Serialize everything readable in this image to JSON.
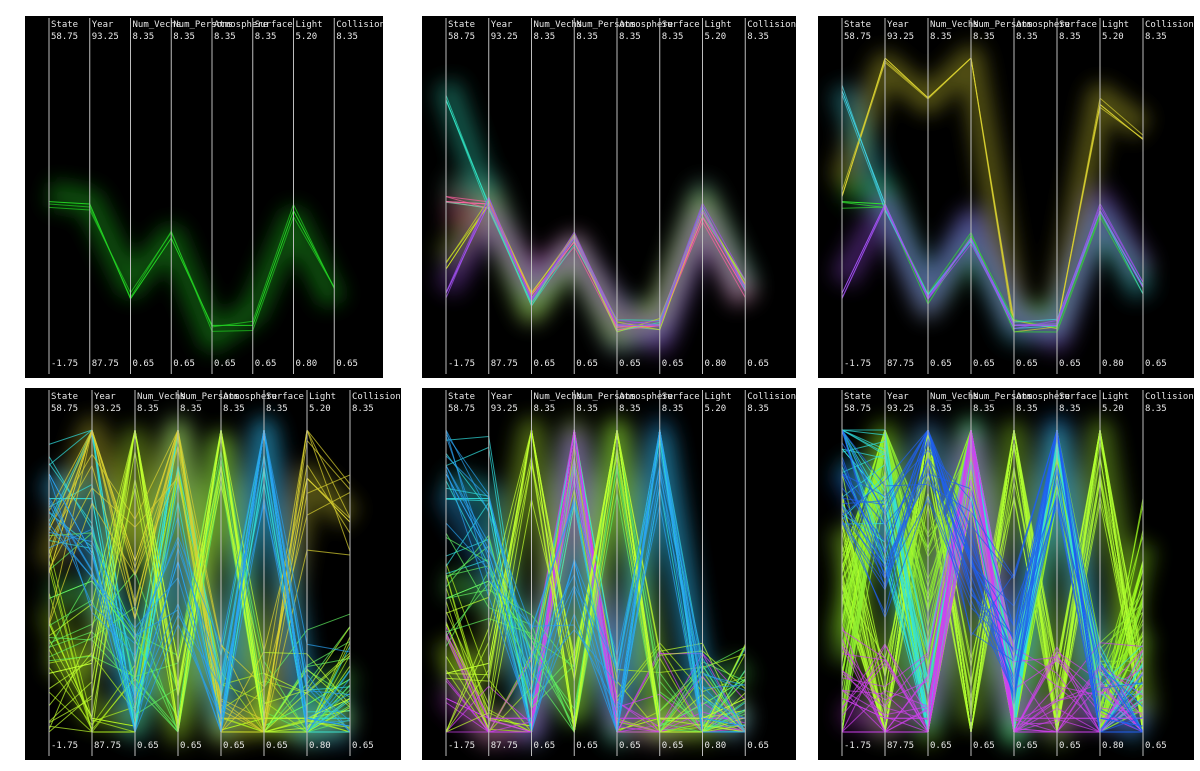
{
  "chart_data": [
    {
      "type": "parallel-coordinates",
      "panel": "top-left",
      "axes": [
        {
          "label": "State",
          "max": "58.75",
          "min": "-1.75"
        },
        {
          "label": "Year",
          "max": "93.25",
          "min": "87.75"
        },
        {
          "label": "Num_Vechs",
          "max": "8.35",
          "min": "0.65"
        },
        {
          "label": "Num_Persons",
          "max": "8.35",
          "min": "0.65"
        },
        {
          "label": "Atmosphere",
          "max": "8.35",
          "min": "0.65"
        },
        {
          "label": "Surface",
          "max": "8.35",
          "min": "0.65"
        },
        {
          "label": "Light",
          "max": "5.20",
          "min": "0.80"
        },
        {
          "label": "Collision",
          "max": "8.35",
          "min": "0.65"
        }
      ],
      "series": [
        {
          "color": "#22d022",
          "values": [
            29.0,
            90.5,
            2.0,
            3.6,
            1.3,
            1.3,
            2.9,
            2.3
          ]
        }
      ]
    },
    {
      "type": "parallel-coordinates",
      "panel": "top-middle",
      "axes": [
        {
          "label": "State",
          "max": "58.75",
          "min": "-1.75"
        },
        {
          "label": "Year",
          "max": "93.25",
          "min": "87.75"
        },
        {
          "label": "Num_Vechs",
          "max": "8.35",
          "min": "0.65"
        },
        {
          "label": "Num_Persons",
          "max": "8.35",
          "min": "0.65"
        },
        {
          "label": "Atmosphere",
          "max": "8.35",
          "min": "0.65"
        },
        {
          "label": "Surface",
          "max": "8.35",
          "min": "0.65"
        },
        {
          "label": "Light",
          "max": "5.20",
          "min": "0.80"
        },
        {
          "label": "Collision",
          "max": "8.35",
          "min": "0.65"
        }
      ],
      "series": [
        {
          "color": "#80c8a8",
          "values": [
            29.0,
            90.5,
            2.0,
            3.6,
            1.3,
            1.3,
            2.9,
            2.3
          ]
        },
        {
          "color": "#ff60a0",
          "values": [
            29.0,
            90.5,
            2.1,
            3.5,
            1.25,
            1.3,
            2.8,
            2.2
          ]
        },
        {
          "color": "#30e0c0",
          "values": [
            50.0,
            90.5,
            2.0,
            3.6,
            1.3,
            1.3,
            2.9,
            2.3
          ]
        },
        {
          "color": "#c8e020",
          "values": [
            15.0,
            90.5,
            2.0,
            3.6,
            1.3,
            1.3,
            2.9,
            2.3
          ]
        },
        {
          "color": "#a050f0",
          "values": [
            10.0,
            90.5,
            2.0,
            3.6,
            1.3,
            1.3,
            2.9,
            2.3
          ]
        }
      ]
    },
    {
      "type": "parallel-coordinates",
      "panel": "top-right",
      "axes": [
        {
          "label": "State",
          "max": "58.75",
          "min": "-1.75"
        },
        {
          "label": "Year",
          "max": "93.25",
          "min": "87.75"
        },
        {
          "label": "Num_Vechs",
          "max": "8.35",
          "min": "0.65"
        },
        {
          "label": "Num_Persons",
          "max": "8.35",
          "min": "0.65"
        },
        {
          "label": "Atmosphere",
          "max": "8.35",
          "min": "0.65"
        },
        {
          "label": "Surface",
          "max": "8.35",
          "min": "0.65"
        },
        {
          "label": "Light",
          "max": "5.20",
          "min": "0.80"
        },
        {
          "label": "Collision",
          "max": "8.35",
          "min": "0.65"
        }
      ],
      "series": [
        {
          "color": "#d8d030",
          "values": [
            30.0,
            93.25,
            7.3,
            8.35,
            1.3,
            1.3,
            4.5,
            6.2
          ]
        },
        {
          "color": "#30e030",
          "values": [
            29.0,
            90.5,
            2.0,
            3.6,
            1.3,
            1.3,
            2.9,
            2.3
          ]
        },
        {
          "color": "#40d0e0",
          "values": [
            52.0,
            90.5,
            2.0,
            3.6,
            1.3,
            1.3,
            2.9,
            2.3
          ]
        },
        {
          "color": "#a050f0",
          "values": [
            10.0,
            90.5,
            2.0,
            3.6,
            1.3,
            1.3,
            2.9,
            2.3
          ]
        }
      ]
    },
    {
      "type": "parallel-coordinates",
      "panel": "bottom-left",
      "axes": [
        {
          "label": "State",
          "max": "58.75",
          "min": "-1.75"
        },
        {
          "label": "Year",
          "max": "93.25",
          "min": "87.75"
        },
        {
          "label": "Num_Vechs",
          "max": "8.35",
          "min": "0.65"
        },
        {
          "label": "Num_Persons",
          "max": "8.35",
          "min": "0.65"
        },
        {
          "label": "Atmosphere",
          "max": "8.35",
          "min": "0.65"
        },
        {
          "label": "Surface",
          "max": "8.35",
          "min": "0.65"
        },
        {
          "label": "Light",
          "max": "5.20",
          "min": "0.80"
        },
        {
          "label": "Collision",
          "max": "8.35",
          "min": "0.65"
        }
      ],
      "series": [
        {
          "color": "#b0f020",
          "values": [
            20.0,
            88.0,
            0.8,
            8.35,
            0.7,
            1.0,
            1.0,
            1.2
          ]
        },
        {
          "color": "#30e0e0",
          "values": [
            45.0,
            92.0,
            0.7,
            8.35,
            0.7,
            8.35,
            1.0,
            1.0
          ]
        },
        {
          "color": "#60f060",
          "values": [
            25.0,
            90.5,
            3.0,
            1.0,
            8.35,
            0.8,
            1.2,
            2.0
          ]
        },
        {
          "color": "#d8d030",
          "values": [
            30.0,
            93.25,
            5.0,
            8.35,
            1.0,
            1.0,
            4.5,
            6.0
          ]
        },
        {
          "color": "#c0ff30",
          "values": [
            10.0,
            89.0,
            8.35,
            0.8,
            8.35,
            1.0,
            1.0,
            1.5
          ]
        },
        {
          "color": "#2aa0f0",
          "values": [
            50.0,
            91.0,
            1.5,
            5.0,
            1.0,
            8.35,
            1.0,
            0.8
          ]
        }
      ]
    },
    {
      "type": "parallel-coordinates",
      "panel": "bottom-middle",
      "axes": [
        {
          "label": "State",
          "max": "58.75",
          "min": "-1.75"
        },
        {
          "label": "Year",
          "max": "93.25",
          "min": "87.75"
        },
        {
          "label": "Num_Vechs",
          "max": "8.35",
          "min": "0.65"
        },
        {
          "label": "Num_Persons",
          "max": "8.35",
          "min": "0.65"
        },
        {
          "label": "Atmosphere",
          "max": "8.35",
          "min": "0.65"
        },
        {
          "label": "Surface",
          "max": "8.35",
          "min": "0.65"
        },
        {
          "label": "Light",
          "max": "5.20",
          "min": "0.80"
        },
        {
          "label": "Collision",
          "max": "8.35",
          "min": "0.65"
        }
      ],
      "series": [
        {
          "color": "#b0f020",
          "values": [
            20.0,
            88.0,
            0.8,
            8.35,
            0.7,
            1.0,
            1.0,
            1.2
          ]
        },
        {
          "color": "#30e0e0",
          "values": [
            45.0,
            92.0,
            0.7,
            8.35,
            0.7,
            8.35,
            1.0,
            1.0
          ]
        },
        {
          "color": "#d040f0",
          "values": [
            5.0,
            88.0,
            1.0,
            8.35,
            1.0,
            1.0,
            1.0,
            1.0
          ]
        },
        {
          "color": "#60f060",
          "values": [
            25.0,
            90.5,
            3.0,
            1.0,
            8.35,
            0.8,
            1.2,
            2.0
          ]
        },
        {
          "color": "#c0ff30",
          "values": [
            10.0,
            89.0,
            8.35,
            0.8,
            8.35,
            1.0,
            1.0,
            1.5
          ]
        },
        {
          "color": "#2aa0f0",
          "values": [
            50.0,
            91.0,
            1.5,
            5.0,
            1.0,
            8.35,
            1.0,
            0.8
          ]
        }
      ]
    },
    {
      "type": "parallel-coordinates",
      "panel": "bottom-right",
      "axes": [
        {
          "label": "State",
          "max": "58.75",
          "min": "-1.75"
        },
        {
          "label": "Year",
          "max": "93.25",
          "min": "87.75"
        },
        {
          "label": "Num_Vechs",
          "max": "8.35",
          "min": "0.65"
        },
        {
          "label": "Num_Persons",
          "max": "8.35",
          "min": "0.65"
        },
        {
          "label": "Atmosphere",
          "max": "8.35",
          "min": "0.65"
        },
        {
          "label": "Surface",
          "max": "8.35",
          "min": "0.65"
        },
        {
          "label": "Light",
          "max": "5.20",
          "min": "0.80"
        },
        {
          "label": "Collision",
          "max": "8.35",
          "min": "0.65"
        }
      ],
      "series": [
        {
          "color": "#a0ff20",
          "values": [
            20.0,
            93.25,
            0.7,
            8.35,
            0.7,
            8.35,
            0.8,
            5.0
          ]
        },
        {
          "color": "#b0ff30",
          "values": [
            40.0,
            87.75,
            8.35,
            0.65,
            8.35,
            0.65,
            5.2,
            0.65
          ]
        },
        {
          "color": "#90f030",
          "values": [
            10.0,
            93.25,
            4.0,
            8.35,
            1.0,
            8.35,
            1.0,
            3.0
          ]
        },
        {
          "color": "#30e0e0",
          "values": [
            55.0,
            92.0,
            1.0,
            8.35,
            1.0,
            8.35,
            1.0,
            1.0
          ]
        },
        {
          "color": "#d040f0",
          "values": [
            5.0,
            88.0,
            1.0,
            8.35,
            1.0,
            1.0,
            1.0,
            1.0
          ]
        },
        {
          "color": "#2060f0",
          "values": [
            50.0,
            91.0,
            8.35,
            5.0,
            3.0,
            8.35,
            1.0,
            0.8
          ]
        }
      ]
    }
  ]
}
